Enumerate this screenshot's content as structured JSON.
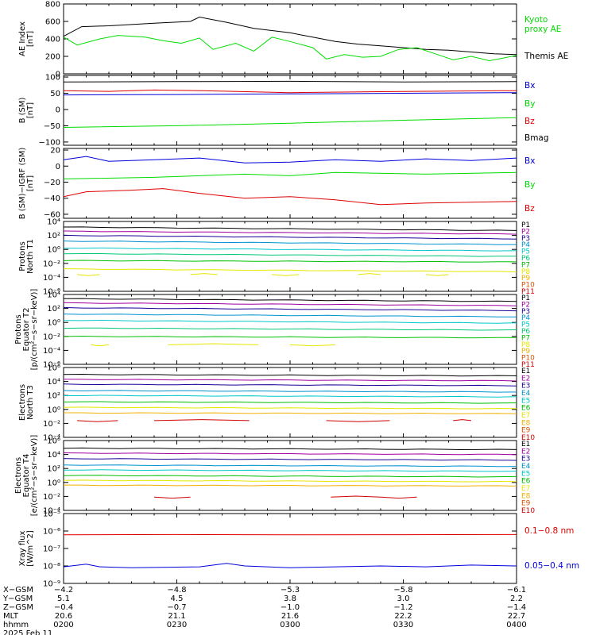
{
  "colors": {
    "black": "#000000",
    "green": "#00dd00",
    "red": "#dd0000",
    "blue": "#0000dd",
    "p_palette": [
      "#000000",
      "#a000a0",
      "#1a0095",
      "#0090d0",
      "#00c8c8",
      "#00c878",
      "#00c000",
      "#e6e600",
      "#f0b000",
      "#e05000",
      "#d00000"
    ],
    "e_palette": [
      "#000000",
      "#a000a0",
      "#1a0095",
      "#0090d0",
      "#00c8c8",
      "#00c000",
      "#e6e600",
      "#f0b000",
      "#e05000",
      "#d00000"
    ]
  },
  "chart_data": [
    {
      "id": "ae",
      "type": "line",
      "ylabel_lines": [
        "AE Index",
        "[nT]"
      ],
      "ylim": [
        0,
        800
      ],
      "yticks": [
        {
          "v": 0,
          "label": "0"
        },
        {
          "v": 200,
          "label": "200"
        },
        {
          "v": 400,
          "label": "400"
        },
        {
          "v": 600,
          "label": "600"
        },
        {
          "v": 800,
          "label": "800"
        }
      ],
      "legend": [
        {
          "text": "Kyoto",
          "color": "#00dd00"
        },
        {
          "text": "proxy AE",
          "color": "#00dd00"
        },
        {
          "text": "Themis AE",
          "color": "#000000"
        }
      ],
      "series": [
        {
          "name": "Themis AE",
          "color": "#000000",
          "x": [
            0,
            0.04,
            0.1,
            0.2,
            0.28,
            0.3,
            0.36,
            0.42,
            0.5,
            0.55,
            0.6,
            0.65,
            0.7,
            0.75,
            0.8,
            0.85,
            0.9,
            0.95,
            1
          ],
          "y": [
            430,
            540,
            550,
            580,
            600,
            650,
            590,
            520,
            470,
            420,
            370,
            340,
            320,
            300,
            280,
            270,
            250,
            230,
            220
          ]
        },
        {
          "name": "Kyoto proxy AE",
          "color": "#00dd00",
          "x": [
            0,
            0.03,
            0.08,
            0.12,
            0.18,
            0.22,
            0.26,
            0.3,
            0.33,
            0.38,
            0.42,
            0.46,
            0.5,
            0.55,
            0.58,
            0.62,
            0.66,
            0.7,
            0.74,
            0.78,
            0.82,
            0.86,
            0.9,
            0.94,
            1
          ],
          "y": [
            420,
            330,
            400,
            440,
            420,
            380,
            350,
            410,
            280,
            350,
            260,
            420,
            370,
            300,
            170,
            220,
            190,
            200,
            280,
            300,
            230,
            160,
            200,
            150,
            210
          ]
        }
      ]
    },
    {
      "id": "bsm",
      "type": "line",
      "ylabel_lines": [
        "B (SM)",
        "[nT]"
      ],
      "ylim": [
        -110,
        105
      ],
      "yticks": [
        {
          "v": -100,
          "label": "−100"
        },
        {
          "v": -50,
          "label": "−50"
        },
        {
          "v": 0,
          "label": "0"
        },
        {
          "v": 50,
          "label": "50"
        },
        {
          "v": 100,
          "label": "100"
        }
      ],
      "legend": [
        {
          "text": "Bx",
          "color": "#0000dd"
        },
        {
          "text": "By",
          "color": "#00dd00"
        },
        {
          "text": "Bz",
          "color": "#dd0000"
        },
        {
          "text": "Bmag",
          "color": "#000000"
        }
      ],
      "series": [
        {
          "name": "Bx",
          "color": "#0000dd",
          "x": [
            0,
            0.25,
            0.5,
            0.75,
            1
          ],
          "y": [
            45,
            46,
            48,
            50,
            52
          ]
        },
        {
          "name": "By",
          "color": "#00dd00",
          "x": [
            0,
            0.25,
            0.5,
            0.75,
            1
          ],
          "y": [
            -55,
            -50,
            -42,
            -33,
            -25
          ]
        },
        {
          "name": "Bz",
          "color": "#dd0000",
          "x": [
            0,
            0.1,
            0.2,
            0.3,
            0.5,
            0.7,
            1
          ],
          "y": [
            58,
            56,
            60,
            58,
            52,
            55,
            58
          ]
        },
        {
          "name": "Bmag",
          "color": "#000000",
          "x": [
            0,
            0.25,
            0.5,
            0.75,
            1
          ],
          "y": [
            85,
            86,
            87,
            85,
            86
          ]
        }
      ]
    },
    {
      "id": "bigrf",
      "type": "line",
      "ylabel_lines": [
        "B (SM)−IGRF (SM)",
        "[nT]"
      ],
      "ylim": [
        -65,
        22
      ],
      "yticks": [
        {
          "v": -60,
          "label": "−60"
        },
        {
          "v": -40,
          "label": "−40"
        },
        {
          "v": -20,
          "label": "−20"
        },
        {
          "v": 0,
          "label": "0"
        },
        {
          "v": 20,
          "label": "20"
        }
      ],
      "legend": [
        {
          "text": "Bx",
          "color": "#0000dd"
        },
        {
          "text": "By",
          "color": "#00dd00"
        },
        {
          "text": "Bz",
          "color": "#dd0000"
        }
      ],
      "series": [
        {
          "name": "Bx",
          "color": "#0000dd",
          "x": [
            0,
            0.05,
            0.1,
            0.2,
            0.3,
            0.4,
            0.5,
            0.6,
            0.7,
            0.8,
            0.9,
            1
          ],
          "y": [
            8,
            12,
            6,
            8,
            10,
            4,
            5,
            8,
            6,
            9,
            7,
            10
          ]
        },
        {
          "name": "By",
          "color": "#00dd00",
          "x": [
            0,
            0.2,
            0.4,
            0.5,
            0.6,
            0.8,
            1
          ],
          "y": [
            -16,
            -14,
            -10,
            -12,
            -8,
            -10,
            -8
          ]
        },
        {
          "name": "Bz",
          "color": "#dd0000",
          "x": [
            0,
            0.05,
            0.15,
            0.22,
            0.3,
            0.4,
            0.5,
            0.6,
            0.7,
            0.8,
            1
          ],
          "y": [
            -38,
            -32,
            -30,
            -28,
            -34,
            -40,
            -38,
            -42,
            -48,
            -46,
            -44
          ]
        }
      ]
    },
    {
      "id": "pnorth",
      "type": "line",
      "log": true,
      "ylabel_lines": [
        "Protons",
        "North T1"
      ],
      "ylim": [
        -6,
        4
      ],
      "yticks": [
        {
          "v": 4,
          "label": "10⁴"
        },
        {
          "v": 2,
          "label": "10²"
        },
        {
          "v": 0,
          "label": "10⁰"
        },
        {
          "v": -2,
          "label": "10⁻²"
        },
        {
          "v": -4,
          "label": "10⁻⁴"
        },
        {
          "v": -6,
          "label": "10⁻⁶"
        }
      ],
      "legend": [
        "P1",
        "P2",
        "P3",
        "P4",
        "P5",
        "P6",
        "P7",
        "P8",
        "P9",
        "P10",
        "P11"
      ],
      "levels": [
        [
          3.2,
          2.7
        ],
        [
          2.6,
          2.2
        ],
        [
          2.0,
          1.5
        ],
        [
          1.2,
          0.7
        ],
        [
          0.2,
          -0.2
        ],
        [
          -0.6,
          -1.0
        ],
        [
          -1.6,
          -1.8
        ],
        [
          -2.8,
          -3.2
        ]
      ],
      "sparse": {
        "series": "P8",
        "segments": [
          [
            0.03,
            0.08
          ],
          [
            0.28,
            0.34
          ],
          [
            0.46,
            0.52
          ],
          [
            0.65,
            0.7
          ],
          [
            0.8,
            0.85
          ]
        ],
        "value": -3.6
      }
    },
    {
      "id": "pequator",
      "type": "line",
      "log": true,
      "ylabel_lines": [
        "Protons",
        "Equator T2",
        "[p/(cm²−s−sr−keV)]"
      ],
      "ylim": [
        -6,
        4
      ],
      "yticks": [
        {
          "v": 4,
          "label": "10⁴"
        },
        {
          "v": 2,
          "label": "10²"
        },
        {
          "v": 0,
          "label": "10⁰"
        },
        {
          "v": -2,
          "label": "10⁻²"
        },
        {
          "v": -4,
          "label": "10⁻⁴"
        },
        {
          "v": -6,
          "label": "10⁻⁶"
        }
      ],
      "legend": [
        "P1",
        "P2",
        "P3",
        "P4",
        "P5",
        "P6",
        "P7",
        "P8",
        "P9",
        "P10",
        "P11"
      ],
      "levels": [
        [
          3.4,
          3.0
        ],
        [
          2.8,
          2.4
        ],
        [
          2.1,
          1.7
        ],
        [
          1.2,
          0.8
        ],
        [
          0.3,
          -0.1
        ],
        [
          -0.8,
          -1.1
        ],
        [
          -2.0,
          -2.2
        ]
      ],
      "sparse": {
        "series": "P8",
        "segments": [
          [
            0.06,
            0.1
          ],
          [
            0.23,
            0.43
          ],
          [
            0.5,
            0.6
          ]
        ],
        "value": -3.2
      }
    },
    {
      "id": "enorth",
      "type": "line",
      "log": true,
      "ylabel_lines": [
        "Electrons",
        "North T3"
      ],
      "ylim": [
        -4,
        6
      ],
      "yticks": [
        {
          "v": 6,
          "label": "10⁶"
        },
        {
          "v": 4,
          "label": "10⁴"
        },
        {
          "v": 2,
          "label": "10²"
        },
        {
          "v": 0,
          "label": "10⁰"
        },
        {
          "v": -2,
          "label": "10⁻²"
        },
        {
          "v": -4,
          "label": "10⁻⁴"
        }
      ],
      "legend": [
        "E1",
        "E2",
        "E3",
        "E4",
        "E5",
        "E6",
        "E7",
        "E8",
        "E9",
        "E10"
      ],
      "levels": [
        [
          5.0,
          4.8
        ],
        [
          4.3,
          4.1
        ],
        [
          3.6,
          3.4
        ],
        [
          2.7,
          2.5
        ],
        [
          2.0,
          1.8
        ],
        [
          1.1,
          0.9
        ],
        [
          0.3,
          0.1
        ],
        [
          -0.5,
          -0.6
        ]
      ],
      "sparse": {
        "series": "E10",
        "segments": [
          [
            0.03,
            0.12
          ],
          [
            0.2,
            0.41
          ],
          [
            0.58,
            0.72
          ],
          [
            0.86,
            0.9
          ]
        ],
        "value": -1.6
      }
    },
    {
      "id": "eequator",
      "type": "line",
      "log": true,
      "ylabel_lines": [
        "Electrons",
        "Equator T4",
        "[e/(cm²−s−sr−keV)]"
      ],
      "ylim": [
        -4,
        6
      ],
      "yticks": [
        {
          "v": 6,
          "label": "10⁶"
        },
        {
          "v": 4,
          "label": "10⁴"
        },
        {
          "v": 2,
          "label": "10²"
        },
        {
          "v": 0,
          "label": "10⁰"
        },
        {
          "v": -2,
          "label": "10⁻²"
        },
        {
          "v": -4,
          "label": "10⁻⁴"
        }
      ],
      "legend": [
        "E1",
        "E2",
        "E3",
        "E4",
        "E5",
        "E6",
        "E7",
        "E8",
        "E9",
        "E10"
      ],
      "levels": [
        [
          4.9,
          4.7
        ],
        [
          4.2,
          4.0
        ],
        [
          3.4,
          3.2
        ],
        [
          2.5,
          2.3
        ],
        [
          1.8,
          1.6
        ],
        [
          1.0,
          0.8
        ],
        [
          0.3,
          0.1
        ],
        [
          -0.4,
          -0.5
        ]
      ],
      "sparse": {
        "series": "E10",
        "segments": [
          [
            0.2,
            0.28
          ],
          [
            0.59,
            0.7
          ],
          [
            0.7,
            0.78
          ]
        ],
        "value": -2.1
      }
    },
    {
      "id": "xray",
      "type": "line",
      "log": true,
      "ylabel_lines": [
        "Xray flux",
        "[W/m^2]"
      ],
      "ylim": [
        -9,
        -5
      ],
      "yticks": [
        {
          "v": -5,
          "label": "10⁻⁵"
        },
        {
          "v": -6,
          "label": "10⁻⁶"
        },
        {
          "v": -7,
          "label": "10⁻⁷"
        },
        {
          "v": -8,
          "label": "10⁻⁸"
        },
        {
          "v": -9,
          "label": "10⁻⁹"
        }
      ],
      "legend": [
        {
          "text": "0.1−0.8 nm",
          "color": "#dd0000"
        },
        {
          "text": "0.05−0.4 nm",
          "color": "#0000dd"
        }
      ],
      "series": [
        {
          "name": "0.1−0.8 nm",
          "color": "#dd0000",
          "x": [
            0,
            0.25,
            0.5,
            0.75,
            1
          ],
          "y": [
            -6.22,
            -6.2,
            -6.22,
            -6.21,
            -6.2
          ]
        },
        {
          "name": "0.05−0.4 nm",
          "color": "#0000dd",
          "x": [
            0,
            0.05,
            0.08,
            0.15,
            0.3,
            0.36,
            0.4,
            0.5,
            0.6,
            0.7,
            0.8,
            0.9,
            1
          ],
          "y": [
            -8.05,
            -7.9,
            -8.05,
            -8.1,
            -8.05,
            -7.85,
            -8.0,
            -8.1,
            -8.05,
            -8.0,
            -8.05,
            -7.95,
            -8.0
          ]
        }
      ]
    }
  ],
  "xaxis": {
    "tick_positions": [
      0,
      0.25,
      0.5,
      0.75,
      1
    ],
    "rows": [
      {
        "label": "X−GSM",
        "values": [
          "−4.2",
          "−4.8",
          "−5.3",
          "−5.8",
          "−6.1"
        ]
      },
      {
        "label": "Y−GSM",
        "values": [
          "5.1",
          "4.5",
          "3.8",
          "3.0",
          "2.2"
        ]
      },
      {
        "label": "Z−GSM",
        "values": [
          "−0.4",
          "−0.7",
          "−1.0",
          "−1.2",
          "−1.4"
        ]
      },
      {
        "label": "MLT",
        "values": [
          "20.6",
          "21.1",
          "21.6",
          "22.2",
          "22.7"
        ]
      },
      {
        "label": "hhmm",
        "values": [
          "0200",
          "0230",
          "0300",
          "0330",
          "0400"
        ]
      }
    ],
    "date": "2025 Feb 11"
  }
}
